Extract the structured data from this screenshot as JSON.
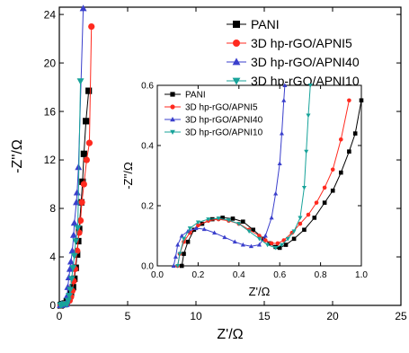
{
  "chart_data": [
    {
      "type": "scatter",
      "role": "main",
      "xlabel": "Z'/Ω",
      "ylabel": "-Z''/Ω",
      "xlim": [
        0,
        25
      ],
      "ylim": [
        0,
        24.6
      ],
      "xticks": [
        "0",
        "5",
        "10",
        "15",
        "20",
        "25"
      ],
      "yticks": [
        "0",
        "4",
        "8",
        "12",
        "16",
        "20",
        "24"
      ],
      "legend_position": "top-right",
      "series": [
        {
          "name": "PANI",
          "color": "#000000",
          "marker": "square",
          "points": [
            [
              0.1,
              0.0
            ],
            [
              0.15,
              0.05
            ],
            [
              0.25,
              0.1
            ],
            [
              0.4,
              0.15
            ],
            [
              0.55,
              0.35
            ],
            [
              0.7,
              0.6
            ],
            [
              0.85,
              1.0
            ],
            [
              1.0,
              1.5
            ],
            [
              1.1,
              2.2
            ],
            [
              1.2,
              3.1
            ],
            [
              1.3,
              4.2
            ],
            [
              1.38,
              5.3
            ],
            [
              1.45,
              6.3
            ],
            [
              1.6,
              8.5
            ],
            [
              1.7,
              10.2
            ],
            [
              1.8,
              12.5
            ],
            [
              1.95,
              15.2
            ],
            [
              2.15,
              17.7
            ]
          ]
        },
        {
          "name": "3D hp-rGO/APNI5",
          "color": "#ff2a1f",
          "marker": "circle",
          "points": [
            [
              0.1,
              0.0
            ],
            [
              0.2,
              0.06
            ],
            [
              0.35,
              0.1
            ],
            [
              0.55,
              0.15
            ],
            [
              0.75,
              0.4
            ],
            [
              0.85,
              0.7
            ],
            [
              0.95,
              1.2
            ],
            [
              1.05,
              2.0
            ],
            [
              1.15,
              3.0
            ],
            [
              1.3,
              4.5
            ],
            [
              1.45,
              6.0
            ],
            [
              1.55,
              7.0
            ],
            [
              1.65,
              8.5
            ],
            [
              1.8,
              10.0
            ],
            [
              2.0,
              12.0
            ],
            [
              2.2,
              13.4
            ],
            [
              2.35,
              23.0
            ]
          ]
        },
        {
          "name": "3D hp-rGO/APNI40",
          "color": "#3a3fcc",
          "marker": "triangle-up",
          "points": [
            [
              0.08,
              0.0
            ],
            [
              0.15,
              0.1
            ],
            [
              0.25,
              0.06
            ],
            [
              0.4,
              0.07
            ],
            [
              0.5,
              0.1
            ],
            [
              0.55,
              0.3
            ],
            [
              0.58,
              0.8
            ],
            [
              0.62,
              1.5
            ],
            [
              0.7,
              2.3
            ],
            [
              0.78,
              3.0
            ],
            [
              0.85,
              3.6
            ],
            [
              0.95,
              4.5
            ],
            [
              1.05,
              5.8
            ],
            [
              1.1,
              6.8
            ],
            [
              1.25,
              8.5
            ],
            [
              1.3,
              9.3
            ],
            [
              1.4,
              11.4
            ],
            [
              1.75,
              24.5
            ]
          ]
        },
        {
          "name": "3D hp-rGO/APNI10",
          "color": "#18a39a",
          "marker": "triangle-down",
          "points": [
            [
              0.1,
              0.0
            ],
            [
              0.2,
              0.08
            ],
            [
              0.35,
              0.12
            ],
            [
              0.55,
              0.1
            ],
            [
              0.65,
              0.4
            ],
            [
              0.72,
              0.8
            ],
            [
              0.8,
              1.3
            ],
            [
              0.9,
              2.2
            ],
            [
              1.0,
              3.1
            ],
            [
              1.1,
              4.1
            ],
            [
              1.2,
              5.3
            ],
            [
              1.35,
              6.4
            ],
            [
              1.55,
              18.5
            ]
          ]
        }
      ]
    },
    {
      "type": "line",
      "role": "inset",
      "xlabel": "Z'/Ω",
      "ylabel": "-Z''/Ω",
      "xlim": [
        0,
        1.0
      ],
      "ylim": [
        0,
        0.6
      ],
      "xticks": [
        "0.0",
        "0.2",
        "0.4",
        "0.6",
        "0.8",
        "1.0"
      ],
      "yticks": [
        "0.0",
        "0.2",
        "0.4",
        "0.6"
      ],
      "legend_position": "top-left",
      "series": [
        {
          "name": "PANI",
          "color": "#000000",
          "marker": "square",
          "points": [
            [
              0.12,
              0.0
            ],
            [
              0.13,
              0.04
            ],
            [
              0.15,
              0.08
            ],
            [
              0.18,
              0.12
            ],
            [
              0.22,
              0.14
            ],
            [
              0.27,
              0.155
            ],
            [
              0.32,
              0.16
            ],
            [
              0.37,
              0.157
            ],
            [
              0.42,
              0.147
            ],
            [
              0.47,
              0.12
            ],
            [
              0.52,
              0.09
            ],
            [
              0.55,
              0.075
            ],
            [
              0.58,
              0.063
            ],
            [
              0.6,
              0.06
            ],
            [
              0.63,
              0.07
            ],
            [
              0.67,
              0.09
            ],
            [
              0.72,
              0.12
            ],
            [
              0.77,
              0.16
            ],
            [
              0.82,
              0.21
            ],
            [
              0.86,
              0.25
            ],
            [
              0.9,
              0.31
            ],
            [
              0.94,
              0.38
            ],
            [
              0.97,
              0.44
            ],
            [
              1.0,
              0.55
            ]
          ]
        },
        {
          "name": "3D hp-rGO/APNI5",
          "color": "#ff2a1f",
          "marker": "circle",
          "points": [
            [
              0.1,
              0.0
            ],
            [
              0.11,
              0.04
            ],
            [
              0.13,
              0.08
            ],
            [
              0.16,
              0.11
            ],
            [
              0.2,
              0.135
            ],
            [
              0.25,
              0.15
            ],
            [
              0.3,
              0.155
            ],
            [
              0.35,
              0.15
            ],
            [
              0.4,
              0.14
            ],
            [
              0.45,
              0.12
            ],
            [
              0.5,
              0.1
            ],
            [
              0.53,
              0.085
            ],
            [
              0.56,
              0.075
            ],
            [
              0.59,
              0.075
            ],
            [
              0.62,
              0.085
            ],
            [
              0.66,
              0.11
            ],
            [
              0.7,
              0.14
            ],
            [
              0.74,
              0.17
            ],
            [
              0.78,
              0.21
            ],
            [
              0.82,
              0.26
            ],
            [
              0.86,
              0.32
            ],
            [
              0.9,
              0.42
            ],
            [
              0.94,
              0.55
            ]
          ]
        },
        {
          "name": "3D hp-rGO/APNI40",
          "color": "#3a3fcc",
          "marker": "triangle-up",
          "points": [
            [
              0.08,
              0.0
            ],
            [
              0.09,
              0.03
            ],
            [
              0.1,
              0.07
            ],
            [
              0.12,
              0.1
            ],
            [
              0.15,
              0.115
            ],
            [
              0.19,
              0.125
            ],
            [
              0.23,
              0.122
            ],
            [
              0.28,
              0.11
            ],
            [
              0.33,
              0.095
            ],
            [
              0.38,
              0.08
            ],
            [
              0.42,
              0.07
            ],
            [
              0.46,
              0.065
            ],
            [
              0.5,
              0.07
            ],
            [
              0.53,
              0.1
            ],
            [
              0.56,
              0.16
            ],
            [
              0.58,
              0.24
            ],
            [
              0.6,
              0.34
            ],
            [
              0.61,
              0.44
            ],
            [
              0.62,
              0.55
            ],
            [
              0.625,
              0.6
            ]
          ]
        },
        {
          "name": "3D hp-rGO/APNI10",
          "color": "#18a39a",
          "marker": "triangle-down",
          "points": [
            [
              0.1,
              0.0
            ],
            [
              0.11,
              0.04
            ],
            [
              0.13,
              0.09
            ],
            [
              0.16,
              0.125
            ],
            [
              0.2,
              0.145
            ],
            [
              0.25,
              0.155
            ],
            [
              0.3,
              0.158
            ],
            [
              0.35,
              0.152
            ],
            [
              0.4,
              0.14
            ],
            [
              0.45,
              0.115
            ],
            [
              0.5,
              0.09
            ],
            [
              0.54,
              0.07
            ],
            [
              0.58,
              0.06
            ],
            [
              0.61,
              0.07
            ],
            [
              0.64,
              0.09
            ],
            [
              0.67,
              0.115
            ],
            [
              0.7,
              0.16
            ],
            [
              0.72,
              0.26
            ],
            [
              0.73,
              0.38
            ],
            [
              0.74,
              0.5
            ],
            [
              0.75,
              0.6
            ]
          ]
        }
      ]
    }
  ]
}
